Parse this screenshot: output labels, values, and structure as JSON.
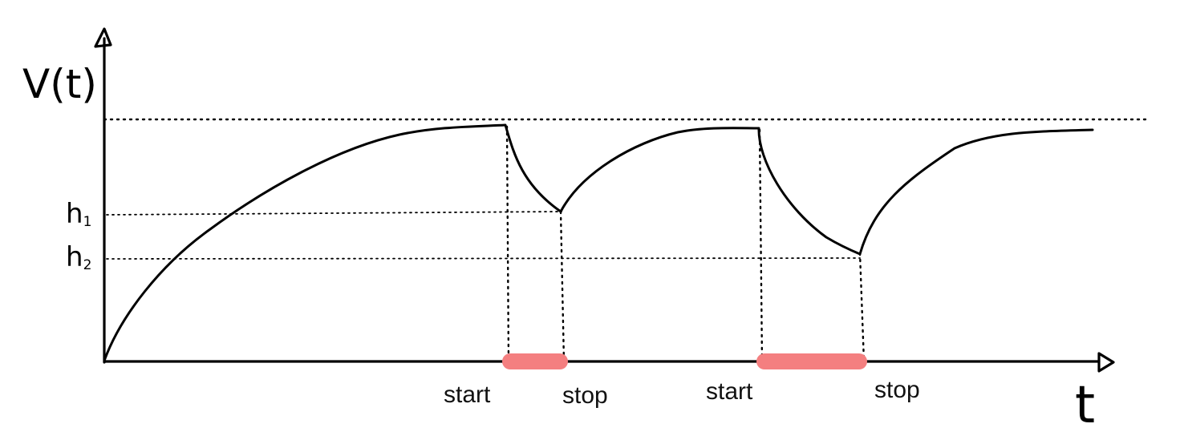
{
  "y_axis_label": "V(t)",
  "x_axis_label": "t",
  "levels": {
    "h1": "h",
    "h1_sub": "1",
    "h2": "h",
    "h2_sub": "2"
  },
  "intervals": [
    {
      "start_label": "start",
      "stop_label": "stop"
    },
    {
      "start_label": "start",
      "stop_label": "stop"
    }
  ],
  "colors": {
    "interval_bar": "#f47f80",
    "ink": "#000000"
  }
}
